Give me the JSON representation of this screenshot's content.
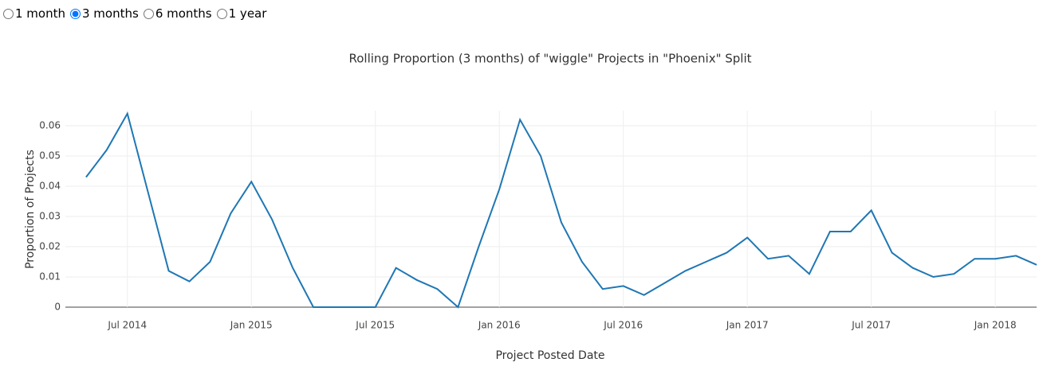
{
  "controls": {
    "options": [
      "1 month",
      "3 months",
      "6 months",
      "1 year"
    ],
    "selected": 1
  },
  "chart_data": {
    "type": "line",
    "title": "Rolling Proportion (3 months) of \"wiggle\" Projects in \"Phoenix\" Split",
    "x_label": "Project Posted Date",
    "y_label": "Proportion of Projects",
    "x": [
      "2014-05",
      "2014-06",
      "2014-07",
      "2014-08",
      "2014-09",
      "2014-10",
      "2014-11",
      "2014-12",
      "2015-01",
      "2015-02",
      "2015-03",
      "2015-04",
      "2015-05",
      "2015-06",
      "2015-07",
      "2015-08",
      "2015-09",
      "2015-10",
      "2015-11",
      "2015-12",
      "2016-01",
      "2016-02",
      "2016-03",
      "2016-04",
      "2016-05",
      "2016-06",
      "2016-07",
      "2016-08",
      "2016-09",
      "2016-10",
      "2016-11",
      "2016-12",
      "2017-01",
      "2017-02",
      "2017-03",
      "2017-04",
      "2017-05",
      "2017-06",
      "2017-07",
      "2017-08",
      "2017-09",
      "2017-10",
      "2017-11",
      "2017-12",
      "2018-01",
      "2018-02",
      "2018-03"
    ],
    "series": [
      {
        "color": "#1f77b4",
        "values": [
          0.043,
          0.052,
          0.064,
          0.038,
          0.012,
          0.0085,
          0.015,
          0.031,
          0.0415,
          0.029,
          0.013,
          0,
          0,
          0,
          0,
          0.013,
          0.009,
          0.006,
          0,
          0.02,
          0.039,
          0.062,
          0.05,
          0.028,
          0.015,
          0.006,
          0.007,
          0.004,
          0.008,
          0.012,
          0.015,
          0.018,
          0.023,
          0.016,
          0.017,
          0.011,
          0.025,
          0.025,
          0.032,
          0.018,
          0.013,
          0.01,
          0.011,
          0.016,
          0.016,
          0.017,
          0.014
        ]
      }
    ],
    "xlim": [
      "2014-04",
      "2018-03"
    ],
    "xticks": [
      {
        "value": "2014-07",
        "label": "Jul 2014"
      },
      {
        "value": "2015-01",
        "label": "Jan 2015"
      },
      {
        "value": "2015-07",
        "label": "Jul 2015"
      },
      {
        "value": "2016-01",
        "label": "Jan 2016"
      },
      {
        "value": "2016-07",
        "label": "Jul 2016"
      },
      {
        "value": "2017-01",
        "label": "Jan 2017"
      },
      {
        "value": "2017-07",
        "label": "Jul 2017"
      },
      {
        "value": "2018-01",
        "label": "Jan 2018"
      }
    ],
    "ylim": [
      0,
      0.065
    ],
    "yticks": [
      0,
      0.01,
      0.02,
      0.03,
      0.04,
      0.05,
      0.06
    ],
    "grid": true
  }
}
